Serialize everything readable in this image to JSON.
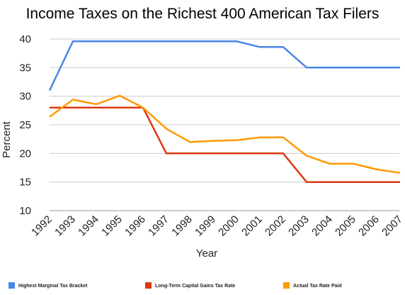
{
  "chart_data": {
    "type": "line",
    "title": "Income Taxes on the Richest 400 American Tax Filers",
    "xlabel": "Year",
    "ylabel": "Percent",
    "x": [
      "1992",
      "1993",
      "1994",
      "1995",
      "1996",
      "1997",
      "1998",
      "1999",
      "2000",
      "2001",
      "2002",
      "2003",
      "2004",
      "2005",
      "2006",
      "2007"
    ],
    "ylim": [
      10,
      40
    ],
    "yticks": [
      "10",
      "15",
      "20",
      "25",
      "30",
      "35",
      "40"
    ],
    "grid": true,
    "legend_position": "bottom",
    "series": [
      {
        "name": "Highest Marginal Tax Bracket",
        "color": "#4a86e8",
        "values": [
          31,
          39.6,
          39.6,
          39.6,
          39.6,
          39.6,
          39.6,
          39.6,
          39.6,
          38.6,
          38.6,
          35,
          35,
          35,
          35,
          35
        ]
      },
      {
        "name": "Long-Term Capital Gains Tax Rate",
        "color": "#dc3912",
        "values": [
          28,
          28,
          28,
          28,
          28,
          20,
          20,
          20,
          20,
          20,
          20,
          15,
          15,
          15,
          15,
          15
        ]
      },
      {
        "name": "Actual Tax Rate Paid",
        "color": "#ff9900",
        "values": [
          26.4,
          29.4,
          28.6,
          30.1,
          28,
          24.3,
          22,
          22.2,
          22.3,
          22.8,
          22.8,
          19.6,
          18.2,
          18.2,
          17.2,
          16.6
        ]
      }
    ]
  }
}
